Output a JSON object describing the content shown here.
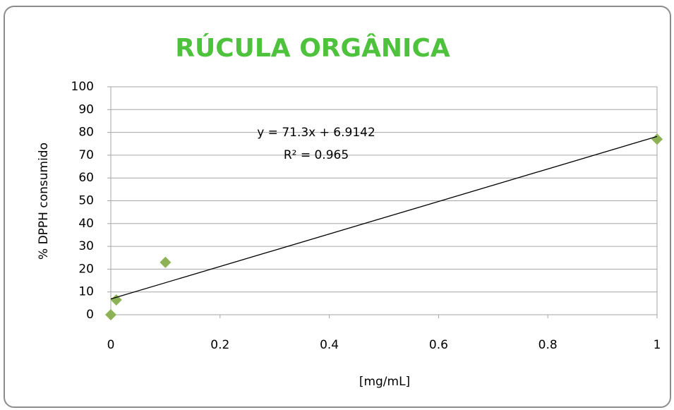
{
  "chart_data": {
    "type": "scatter",
    "title": "RÚCULA ORGÂNICA",
    "x_label": "[mg/mL]",
    "y_label": "% DPPH consumido",
    "x": [
      0,
      0.01,
      0.1,
      1
    ],
    "values": [
      0,
      6.5,
      23,
      77
    ],
    "color": "#8db255",
    "xlim": [
      0,
      1
    ],
    "xticks": [
      0,
      0.2,
      0.4,
      0.6,
      0.8,
      1
    ],
    "ylim": [
      0,
      100
    ],
    "yticks": [
      0,
      10,
      20,
      30,
      40,
      50,
      60,
      70,
      80,
      90,
      100
    ],
    "grid": true,
    "trendline": {
      "slope": 71.3,
      "intercept": 6.9142,
      "color": "#000000"
    },
    "annotations": [
      "y = 71.3x + 6.9142",
      "R² = 0.965"
    ]
  }
}
